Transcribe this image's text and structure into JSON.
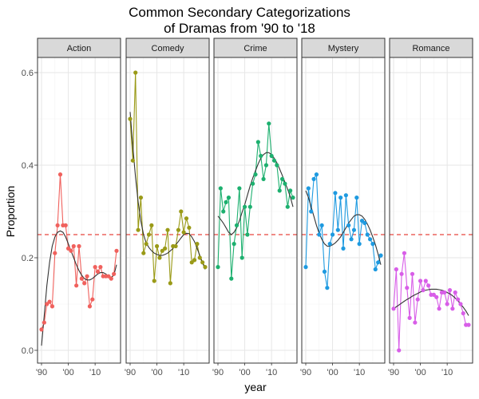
{
  "chart_data": {
    "type": "line",
    "title_lines": [
      "Common Secondary Categorizations",
      "of Dramas from '90 to '18"
    ],
    "xlabel": "year",
    "ylabel": "Proportion",
    "xlim": [
      1990,
      2018
    ],
    "ylim": [
      0,
      0.6
    ],
    "x_ticks": [
      1990,
      2000,
      2010
    ],
    "x_tick_labels": [
      "'90",
      "'00",
      "'10"
    ],
    "y_ticks": [
      0,
      0.2,
      0.4,
      0.6
    ],
    "y_tick_labels": [
      "0.0",
      "0.2",
      "0.4",
      "0.6"
    ],
    "reference_line": 0.25,
    "reference_color": "#e8463d",
    "trend_color": "#333333",
    "grid": true,
    "years": [
      1990,
      1991,
      1992,
      1993,
      1994,
      1995,
      1996,
      1997,
      1998,
      1999,
      2000,
      2001,
      2002,
      2003,
      2004,
      2005,
      2006,
      2007,
      2008,
      2009,
      2010,
      2011,
      2012,
      2013,
      2014,
      2015,
      2016,
      2017,
      2018
    ],
    "panels": [
      {
        "name": "Action",
        "color": "#f0615d",
        "values": [
          0.045,
          0.06,
          0.1,
          0.105,
          0.095,
          0.21,
          0.27,
          0.38,
          0.27,
          0.27,
          0.22,
          0.215,
          0.225,
          0.14,
          0.225,
          0.155,
          0.145,
          0.16,
          0.095,
          0.11,
          0.18,
          0.17,
          0.18,
          0.16,
          0.16,
          0.16,
          0.155,
          0.165,
          0.215
        ],
        "trend": [
          0.01,
          0.075,
          0.14,
          0.19,
          0.225,
          0.245,
          0.255,
          0.258,
          0.255,
          0.245,
          0.23,
          0.215,
          0.2,
          0.185,
          0.172,
          0.162,
          0.155,
          0.152,
          0.152,
          0.155,
          0.16,
          0.165,
          0.168,
          0.168,
          0.165,
          0.16,
          0.158,
          0.162,
          0.185
        ]
      },
      {
        "name": "Comedy",
        "color": "#9a9a17",
        "values": [
          0.5,
          0.41,
          0.6,
          0.26,
          0.33,
          0.21,
          0.23,
          0.25,
          0.27,
          0.15,
          0.225,
          0.2,
          0.215,
          0.22,
          0.26,
          0.145,
          0.225,
          0.225,
          0.26,
          0.3,
          0.255,
          0.285,
          0.265,
          0.19,
          0.195,
          0.23,
          0.2,
          0.19,
          0.18
        ],
        "trend": [
          0.515,
          0.44,
          0.375,
          0.32,
          0.28,
          0.25,
          0.232,
          0.222,
          0.215,
          0.21,
          0.207,
          0.205,
          0.205,
          0.207,
          0.21,
          0.215,
          0.22,
          0.228,
          0.235,
          0.243,
          0.25,
          0.253,
          0.252,
          0.245,
          0.235,
          0.22,
          0.205,
          0.19,
          0.175
        ]
      },
      {
        "name": "Crime",
        "color": "#1db06f",
        "values": [
          0.18,
          0.35,
          0.3,
          0.32,
          0.33,
          0.155,
          0.23,
          0.27,
          0.35,
          0.2,
          0.31,
          0.25,
          0.31,
          0.36,
          0.38,
          0.45,
          0.42,
          0.37,
          0.4,
          0.49,
          0.42,
          0.41,
          0.4,
          0.345,
          0.37,
          0.36,
          0.31,
          0.345,
          0.33
        ],
        "trend": [
          0.29,
          0.283,
          0.275,
          0.265,
          0.255,
          0.25,
          0.255,
          0.265,
          0.28,
          0.298,
          0.315,
          0.335,
          0.355,
          0.372,
          0.388,
          0.403,
          0.415,
          0.423,
          0.427,
          0.427,
          0.423,
          0.415,
          0.405,
          0.392,
          0.378,
          0.363,
          0.348,
          0.332,
          0.31
        ]
      },
      {
        "name": "Mystery",
        "color": "#1e9ae0",
        "values": [
          0.18,
          0.35,
          0.3,
          0.37,
          0.38,
          0.25,
          0.27,
          0.17,
          0.135,
          0.23,
          0.25,
          0.34,
          0.26,
          0.33,
          0.22,
          0.335,
          0.27,
          0.24,
          0.26,
          0.33,
          0.23,
          0.28,
          0.275,
          0.25,
          0.24,
          0.23,
          0.175,
          0.19,
          0.205
        ],
        "trend": [
          0.345,
          0.33,
          0.31,
          0.29,
          0.27,
          0.253,
          0.24,
          0.23,
          0.225,
          0.225,
          0.228,
          0.232,
          0.238,
          0.245,
          0.255,
          0.265,
          0.275,
          0.283,
          0.29,
          0.293,
          0.293,
          0.29,
          0.283,
          0.273,
          0.26,
          0.245,
          0.228,
          0.208,
          0.185
        ]
      },
      {
        "name": "Romance",
        "color": "#d85ee8",
        "values": [
          0.09,
          0.175,
          0.0,
          0.165,
          0.21,
          0.135,
          0.07,
          0.165,
          0.06,
          0.11,
          0.15,
          0.13,
          0.15,
          0.14,
          0.12,
          0.12,
          0.115,
          0.09,
          0.125,
          0.125,
          0.1,
          0.13,
          0.09,
          0.125,
          0.11,
          0.1,
          0.08,
          0.055,
          0.055
        ],
        "trend": [
          0.09,
          0.094,
          0.098,
          0.102,
          0.106,
          0.11,
          0.113,
          0.117,
          0.12,
          0.123,
          0.126,
          0.128,
          0.13,
          0.131,
          0.132,
          0.132,
          0.132,
          0.131,
          0.13,
          0.128,
          0.125,
          0.122,
          0.118,
          0.113,
          0.107,
          0.1,
          0.093,
          0.085,
          0.075
        ]
      }
    ]
  }
}
